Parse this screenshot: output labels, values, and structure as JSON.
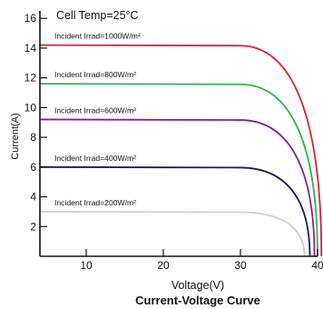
{
  "chart_data": {
    "type": "line",
    "title": "Current-Voltage Curve",
    "subtitle": "Cell Temp=25°C",
    "xlabel": "Voltage(V)",
    "ylabel": "Current(A)",
    "xlim": [
      4,
      40
    ],
    "ylim": [
      0,
      16.5
    ],
    "x_ticks": [
      10,
      20,
      30,
      40
    ],
    "y_ticks": [
      2,
      4,
      6,
      8,
      10,
      12,
      14,
      16
    ],
    "grid": false,
    "series": [
      {
        "name": "Incident Irrad=1000W/m²",
        "color": "#e0202a",
        "isc": 14.2,
        "knee_v": 30,
        "voc": 40.5
      },
      {
        "name": "Incident Irrad=800W/m²",
        "color": "#2fb54a",
        "isc": 11.6,
        "knee_v": 30,
        "voc": 40.0
      },
      {
        "name": "Incident Irrad=600W/m²",
        "color": "#8c1a9c",
        "isc": 9.2,
        "knee_v": 30,
        "voc": 39.6
      },
      {
        "name": "Incident Irrad=400W/m²",
        "color": "#1a1a5e",
        "isc": 6.0,
        "knee_v": 30,
        "voc": 39.0
      },
      {
        "name": "Incident Irrad=200W/m²",
        "color": "#cfcfcf",
        "isc": 3.0,
        "knee_v": 30,
        "voc": 38.3
      }
    ]
  }
}
